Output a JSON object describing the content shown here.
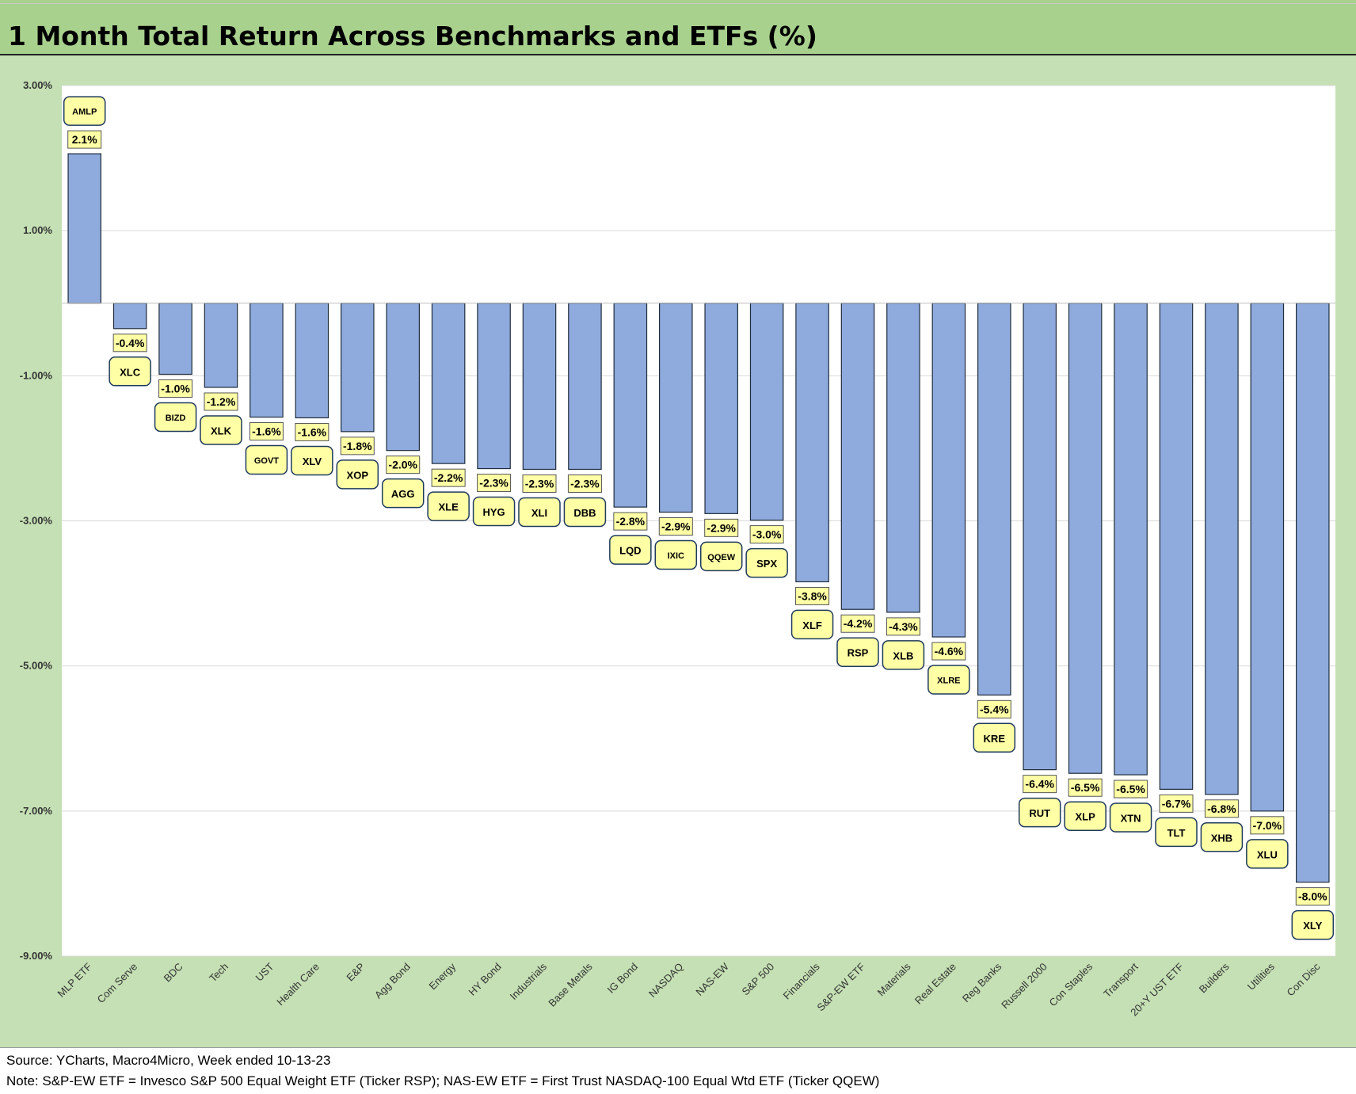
{
  "title": "1 Month Total Return Across Benchmarks and ETFs (%)",
  "footer": {
    "source": "Source: YCharts, Macro4Micro, Week ended 10-13-23",
    "note": "Note: S&P-EW ETF = Invesco S&P 500 Equal Weight ETF (Ticker RSP); NAS-EW ETF = First Trust NASDAQ-100 Equal Wtd ETF (Ticker QQEW)"
  },
  "colors": {
    "bar_fill": "#8faadc",
    "label_fill": "#ffffa6",
    "chart_bg": "#c5e0b4",
    "title_bg": "#a9d18e",
    "plot_bg": "#ffffff"
  },
  "chart_data": {
    "type": "bar",
    "title": "1 Month Total Return Across Benchmarks and ETFs (%)",
    "xlabel": "",
    "ylabel": "",
    "ylim": [
      -9,
      3
    ],
    "yticks": [
      3,
      1,
      -1,
      -3,
      -5,
      -7,
      -9
    ],
    "ytick_labels": [
      "3.00%",
      "1.00%",
      "-1.00%",
      "-3.00%",
      "-5.00%",
      "-7.00%",
      "-9.00%"
    ],
    "grid": true,
    "categories": [
      "MLP ETF",
      "Com Serve",
      "BDC",
      "Tech",
      "UST",
      "Health Care",
      "E&P",
      "Agg Bond",
      "Energy",
      "HY Bond",
      "Industrials",
      "Base Metals",
      "IG Bond",
      "NASDAQ",
      "NAS-EW",
      "S&P 500",
      "Financials",
      "S&P-EW ETF",
      "Materials",
      "Real Estate",
      "Reg Banks",
      "Russell 2000",
      "Con Staples",
      "Transport",
      "20+Y UST ETF",
      "Builders",
      "Utilities",
      "Con Disc"
    ],
    "values": [
      2.06,
      -0.35,
      -0.98,
      -1.16,
      -1.57,
      -1.58,
      -1.77,
      -2.03,
      -2.21,
      -2.28,
      -2.29,
      -2.29,
      -2.81,
      -2.88,
      -2.9,
      -2.99,
      -3.84,
      -4.22,
      -4.26,
      -4.6,
      -5.4,
      -6.43,
      -6.48,
      -6.5,
      -6.7,
      -6.77,
      -7.0,
      -7.98
    ],
    "value_labels": [
      "2.1%",
      "-0.4%",
      "-1.0%",
      "-1.2%",
      "-1.6%",
      "-1.6%",
      "-1.8%",
      "-2.0%",
      "-2.2%",
      "-2.3%",
      "-2.3%",
      "-2.3%",
      "-2.8%",
      "-2.9%",
      "-2.9%",
      "-3.0%",
      "-3.8%",
      "-4.2%",
      "-4.3%",
      "-4.6%",
      "-5.4%",
      "-6.4%",
      "-6.5%",
      "-6.5%",
      "-6.7%",
      "-6.8%",
      "-7.0%",
      "-8.0%"
    ],
    "tickers": [
      "AMLP",
      "XLC",
      "BIZD",
      "XLK",
      "GOVT",
      "XLV",
      "XOP",
      "AGG",
      "XLE",
      "HYG",
      "XLI",
      "DBB",
      "LQD",
      "IXIC",
      "QQEW",
      "SPX",
      "XLF",
      "RSP",
      "XLB",
      "XLRE",
      "KRE",
      "RUT",
      "XLP",
      "XTN",
      "TLT",
      "XHB",
      "XLU",
      "XLY"
    ]
  }
}
